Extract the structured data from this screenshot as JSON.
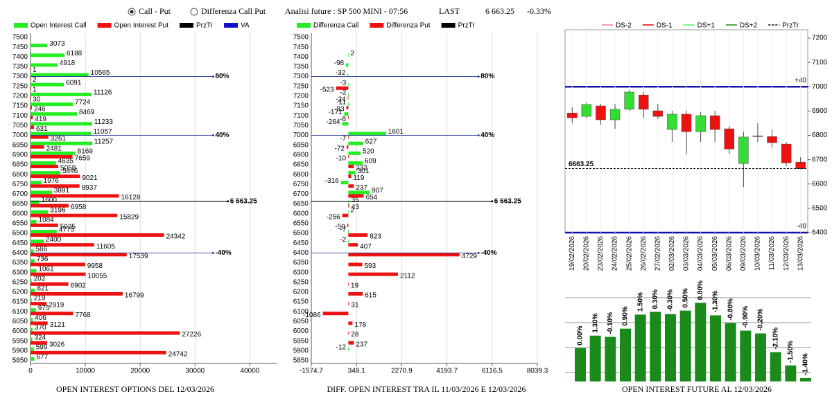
{
  "header": {
    "radio_options": [
      {
        "label": "Call - Put",
        "selected": true
      },
      {
        "label": "Differenza Call Put",
        "selected": false
      }
    ],
    "title": "Analisi future : SP 500 MINI - 07:56",
    "last_label": "LAST",
    "last": "6 663.25",
    "change": "-0.33%"
  },
  "chart_data": [
    {
      "type": "bar",
      "orientation": "horizontal",
      "title": "OPEN INTEREST OPTIONS DEL 12/03/2026",
      "categories": [
        7500,
        7450,
        7400,
        7350,
        7300,
        7250,
        7200,
        7150,
        7100,
        7050,
        7000,
        6950,
        6900,
        6850,
        6800,
        6750,
        6700,
        6650,
        6600,
        6550,
        6500,
        6450,
        6400,
        6350,
        6300,
        6250,
        6200,
        6150,
        6100,
        6050,
        6000,
        5950,
        5900,
        5850
      ],
      "series": [
        {
          "name": "Open Interest Call",
          "color": "#22ee22",
          "values": [
            null,
            3073,
            6188,
            4918,
            10565,
            6091,
            11126,
            7724,
            8469,
            11233,
            11057,
            11257,
            8169,
            4635,
            5446,
            1976,
            3891,
            1600,
            3196,
            1084,
            4775,
            2400,
            566,
            736,
            1061,
            202,
            821,
            219,
            975,
            406,
            370,
            324,
            599,
            677
          ]
        },
        {
          "name": "Open Interest Put",
          "color": "#ee1111",
          "values": [
            null,
            null,
            null,
            1,
            2,
            1,
            30,
            246,
            419,
            631,
            3261,
            2481,
            7659,
            5059,
            9021,
            8937,
            16128,
            6958,
            15829,
            5025,
            24342,
            11605,
            17539,
            9958,
            10055,
            6902,
            16799,
            2919,
            7768,
            3121,
            27226,
            3026,
            24742,
            null
          ]
        }
      ],
      "legend_extra": [
        {
          "name": "PrzTr",
          "color": "#000000"
        },
        {
          "name": "VA",
          "color": "#1010cc"
        }
      ],
      "xlim": [
        0,
        45000
      ],
      "xticks": [
        0,
        10000,
        20000,
        30000,
        40000
      ],
      "grid": true,
      "levels": [
        {
          "at": 7300,
          "text": "80%",
          "color": "#2a3a9a"
        },
        {
          "at": 7000,
          "text": "40%",
          "color": "#2a3a9a"
        },
        {
          "at": 6663.25,
          "text": "6 663.25",
          "color": "#000000"
        },
        {
          "at": 6400,
          "text": "-40%",
          "color": "#2a3a9a"
        }
      ]
    },
    {
      "type": "bar",
      "orientation": "horizontal",
      "title": "DIFF. OPEN INTEREST TRA IL 11/03/2026 E 12/03/2026",
      "categories": [
        7500,
        7450,
        7400,
        7350,
        7300,
        7250,
        7200,
        7150,
        7100,
        7050,
        7000,
        6950,
        6900,
        6850,
        6800,
        6750,
        6700,
        6650,
        6600,
        6550,
        6500,
        6450,
        6400,
        6350,
        6300,
        6250,
        6200,
        6150,
        6100,
        6050,
        6000,
        5950,
        5900,
        5850
      ],
      "series": [
        {
          "name": "Differenza Call",
          "color": "#22ee22",
          "values": [
            null,
            null,
            2,
            -98,
            -32,
            -3,
            -2,
            -11,
            -171,
            -264,
            1601,
            627,
            520,
            609,
            301,
            -316,
            907,
            35,
            2,
            null,
            -7,
            -2,
            null,
            null,
            null,
            null,
            null,
            null,
            null,
            null,
            null,
            null,
            -12,
            null
          ]
        },
        {
          "name": "Differenza Put",
          "color": "#ee1111",
          "values": [
            null,
            null,
            null,
            null,
            null,
            -523,
            -24,
            -83,
            -8,
            null,
            -7,
            -72,
            -10,
            232,
            119,
            237,
            654,
            43,
            -256,
            -50,
            823,
            407,
            4729,
            593,
            2112,
            19,
            615,
            31,
            -1086,
            178,
            28,
            237,
            null,
            null
          ]
        }
      ],
      "legend_extra": [
        {
          "name": "PrzTr",
          "color": "#000000"
        }
      ],
      "xlim": [
        -1574.7,
        8039.3
      ],
      "xticks": [
        -1574.7,
        348.1,
        2270.9,
        4193.7,
        6116.5,
        8039.3
      ],
      "grid": true,
      "levels": [
        {
          "at": 7300,
          "text": "80%",
          "color": "#2a3a9a"
        },
        {
          "at": 7000,
          "text": "40%",
          "color": "#2a3a9a"
        },
        {
          "at": 6663.25,
          "text": "6 663.25",
          "color": "#000000"
        },
        {
          "at": 6400,
          "text": "-40%",
          "color": "#2a3a9a"
        }
      ]
    },
    {
      "type": "candlestick",
      "x": [
        "19/02/2026",
        "20/02/2026",
        "23/02/2026",
        "24/02/2026",
        "25/02/2026",
        "26/02/2026",
        "27/02/2026",
        "02/03/2026",
        "03/03/2026",
        "04/03/2026",
        "05/03/2026",
        "06/03/2026",
        "09/03/2026",
        "10/03/2026",
        "11/03/2026",
        "12/03/2026",
        "13/03/2026"
      ],
      "open": [
        6892,
        6878,
        6921,
        6864,
        6907,
        6966,
        6901,
        6824,
        6887,
        6815,
        6881,
        6827,
        6684,
        6798,
        6795,
        6764,
        6690
      ],
      "high": [
        6915,
        6935,
        6929,
        6929,
        6986,
        6978,
        6929,
        6901,
        6901,
        6895,
        6901,
        6838,
        6815,
        6850,
        6824,
        6773,
        6710
      ],
      "low": [
        6850,
        6872,
        6844,
        6827,
        6901,
        6872,
        6867,
        6773,
        6724,
        6773,
        6773,
        6724,
        6587,
        6773,
        6750,
        6673,
        6660
      ],
      "close": [
        6872,
        6927,
        6864,
        6907,
        6978,
        6907,
        6878,
        6887,
        6815,
        6881,
        6824,
        6744,
        6793,
        6795,
        6770,
        6687,
        6663.25
      ],
      "up_color": "#33dd33",
      "down_color": "#ee1111",
      "ylim": [
        6400,
        7200
      ],
      "yticks": [
        6400,
        6500,
        6600,
        6700,
        6800,
        6900,
        7000,
        7100,
        7200
      ],
      "legend": [
        {
          "name": "DS-2",
          "color": "#f08080",
          "dash": false
        },
        {
          "name": "DS-1",
          "color": "#dd0000",
          "dash": false
        },
        {
          "name": "DS+1",
          "color": "#55ee55",
          "dash": false
        },
        {
          "name": "DS+2",
          "color": "#118811",
          "dash": false
        },
        {
          "name": "PrzTr",
          "color": "#000000",
          "dash": true
        }
      ],
      "levels": [
        {
          "at": 7000,
          "text": "+40",
          "color": "#1010aa"
        },
        {
          "at": 6400,
          "text": "-40",
          "color": "#1010aa"
        }
      ],
      "price_line": 6663.25
    },
    {
      "type": "bar",
      "orientation": "vertical",
      "title": "OPEN INTEREST FUTURE AL 12/03/2026",
      "values": [
        1.33,
        1.83,
        1.78,
        2.11,
        2.67,
        2.78,
        2.69,
        2.83,
        3.14,
        2.64,
        2.33,
        2.03,
        1.92,
        1.17,
        0.64,
        0.14
      ],
      "bar_labels": [
        "0.00%",
        "1.30%",
        "-0.10%",
        "0.90%",
        "1.50%",
        "0.30%",
        "-0.30%",
        "0.50%",
        "0.80%",
        "-1.30%",
        "-0.80%",
        "-0.90%",
        "-0.20%",
        "-2.10%",
        "-1.50%",
        "-1.40%"
      ],
      "color": "#1a8a1a",
      "ylim": [
        0,
        3.4
      ]
    }
  ]
}
